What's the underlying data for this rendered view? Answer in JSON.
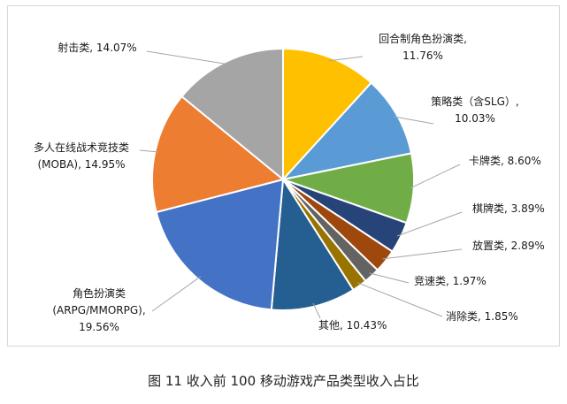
{
  "caption": "图 11 收入前 100 移动游戏产品类型收入占比",
  "chart_data": {
    "type": "pie",
    "title": "",
    "start_angle_deg": 0,
    "direction": "clockwise",
    "slices": [
      {
        "label_lines": [
          "回合制角色扮演类,",
          "11.76%"
        ],
        "value": 11.76,
        "color": "#FFC000"
      },
      {
        "label_lines": [
          "策略类（含SLG）,",
          "10.03%"
        ],
        "value": 10.03,
        "color": "#5B9BD5"
      },
      {
        "label_lines": [
          "卡牌类, 8.60%"
        ],
        "value": 8.6,
        "color": "#70AD47"
      },
      {
        "label_lines": [
          "棋牌类, 3.89%"
        ],
        "value": 3.89,
        "color": "#264478"
      },
      {
        "label_lines": [
          "放置类, 2.89%"
        ],
        "value": 2.89,
        "color": "#9E480E"
      },
      {
        "label_lines": [
          "竞速类, 1.97%"
        ],
        "value": 1.97,
        "color": "#636363"
      },
      {
        "label_lines": [
          "消除类, 1.85%"
        ],
        "value": 1.85,
        "color": "#997300"
      },
      {
        "label_lines": [
          "其他, 10.43%"
        ],
        "value": 10.43,
        "color": "#255E91"
      },
      {
        "label_lines": [
          "角色扮演类",
          "(ARPG/MMORPG),",
          "19.56%"
        ],
        "value": 19.56,
        "color": "#4472C4"
      },
      {
        "label_lines": [
          "多人在线战术竞技类",
          "(MOBA), 14.95%"
        ],
        "value": 14.95,
        "color": "#ED7D31"
      },
      {
        "label_lines": [
          "射击类, 14.07%"
        ],
        "value": 14.07,
        "color": "#A5A5A5"
      }
    ]
  }
}
